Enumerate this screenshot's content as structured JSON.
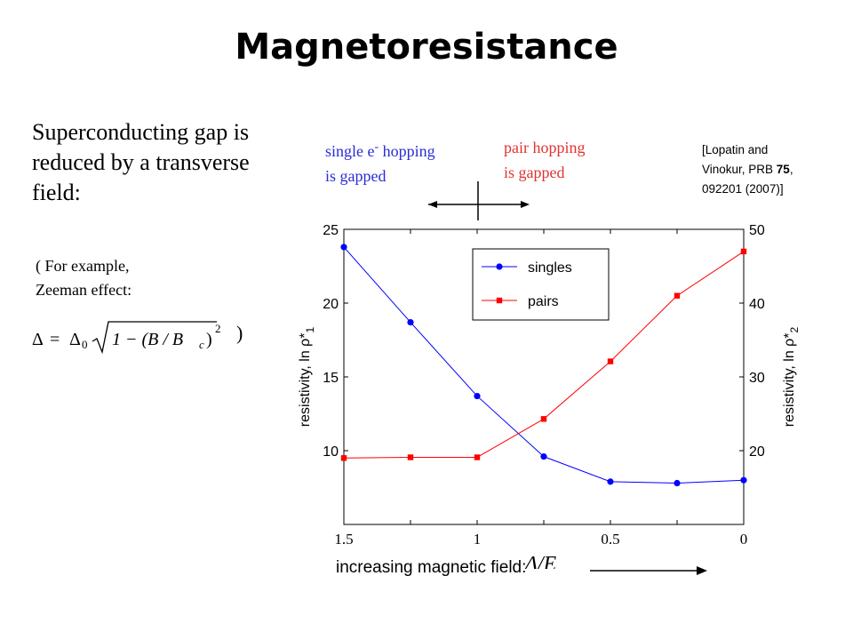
{
  "slide": {
    "title": "Magnetoresistance",
    "intro": "Superconducting gap is reduced by a transverse field:",
    "example_line1": "( For example,",
    "example_line2": "Zeeman effect:",
    "close_paren": ")",
    "single_line1": "single e",
    "single_sup": "-",
    "single_line1_end": " hopping",
    "single_line2": "is gapped",
    "pair_line1": "pair hopping",
    "pair_line2": "is gapped",
    "citation_line1": "[Lopatin and",
    "citation_line2_pre": "Vinokur, PRB ",
    "citation_volume": "75",
    "citation_line2_post": ",",
    "citation_line3": "092201 (2007)]",
    "increasing_label": "increasing magnetic field:"
  },
  "formula": {
    "text": "Δ = Δ0 √(1 − (B / Bc)²)",
    "delta": "Δ",
    "equals": "=",
    "delta0": "Δ",
    "sub0": "0",
    "inner": "1 − (B / B",
    "sub_c": "c",
    "inner_end": ")",
    "exp": "2"
  },
  "colors": {
    "singles": "#0000ff",
    "pairs": "#ff0000",
    "single_text": "#2a2ad8",
    "pair_text": "#e23232"
  },
  "chart_data": {
    "type": "line",
    "x": [
      1.5,
      1.25,
      1.0,
      0.75,
      0.5,
      0.25,
      0.0
    ],
    "x_reversed": true,
    "xlim": [
      1.5,
      0
    ],
    "xticks": [
      1.5,
      1.25,
      1.0,
      0.75,
      0.5,
      0.25,
      0.0
    ],
    "xtick_labels": [
      "1.5",
      "",
      "1",
      "",
      "0.5",
      "",
      "0"
    ],
    "xlabel": "Δ/E",
    "xlabel_sub": "c",
    "left_axis": {
      "label": "resistivity, ln ρ*",
      "label_sub": "1",
      "ylim": [
        5,
        25
      ],
      "ticks": [
        10,
        15,
        20,
        25
      ],
      "tick_labels": [
        "10",
        "15",
        "20",
        "25"
      ]
    },
    "right_axis": {
      "label": "resistivity, ln ρ*",
      "label_sub": "2",
      "ylim": [
        10,
        50
      ],
      "ticks": [
        20,
        30,
        40,
        50
      ],
      "tick_labels": [
        "20",
        "30",
        "40",
        "50"
      ]
    },
    "series": [
      {
        "name": "singles",
        "axis": "left",
        "marker": "circle",
        "color": "#0000ff",
        "values": [
          23.8,
          18.7,
          13.7,
          9.6,
          7.9,
          7.8,
          8.0
        ]
      },
      {
        "name": "pairs",
        "axis": "right",
        "marker": "square",
        "color": "#ff0000",
        "values": [
          19.0,
          19.1,
          19.1,
          24.3,
          32.1,
          41.0,
          47.0
        ]
      }
    ],
    "legend": "top-right",
    "grid": false
  }
}
